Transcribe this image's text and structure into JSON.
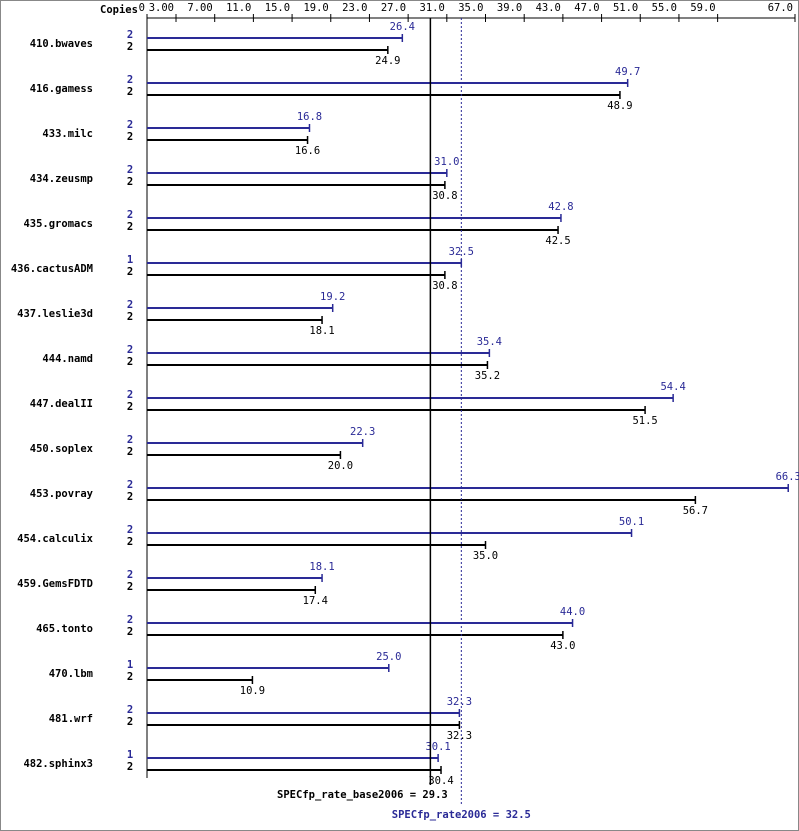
{
  "chart_data": {
    "type": "bar",
    "orientation": "horizontal",
    "axis_title": "Copies",
    "categories": [
      "410.bwaves",
      "416.gamess",
      "433.milc",
      "434.zeusmp",
      "435.gromacs",
      "436.cactusADM",
      "437.leslie3d",
      "444.namd",
      "447.dealII",
      "450.soplex",
      "453.povray",
      "454.calculix",
      "459.GemsFDTD",
      "465.tonto",
      "470.lbm",
      "481.wrf",
      "482.sphinx3"
    ],
    "series": [
      {
        "color": "#2a2a96",
        "copies": [
          2,
          2,
          2,
          2,
          2,
          1,
          2,
          2,
          2,
          2,
          2,
          2,
          2,
          2,
          1,
          2,
          1
        ],
        "values": [
          26.4,
          49.7,
          16.8,
          31.0,
          42.8,
          32.5,
          19.2,
          35.4,
          54.4,
          22.3,
          66.3,
          50.1,
          18.1,
          44.0,
          25.0,
          32.3,
          30.1
        ],
        "value_labels": [
          "26.4",
          "49.7",
          "16.8",
          "31.0",
          "42.8",
          "32.5",
          "19.2",
          "35.4",
          "54.4",
          "22.3",
          "66.3",
          "50.1",
          "18.1",
          "44.0",
          "25.0",
          "32.3",
          "30.1"
        ]
      },
      {
        "color": "#000000",
        "copies": [
          2,
          2,
          2,
          2,
          2,
          2,
          2,
          2,
          2,
          2,
          2,
          2,
          2,
          2,
          2,
          2,
          2
        ],
        "values": [
          24.9,
          48.9,
          16.6,
          30.8,
          42.5,
          30.8,
          18.1,
          35.2,
          51.5,
          20.0,
          56.7,
          35.0,
          17.4,
          43.0,
          10.9,
          32.3,
          30.4
        ],
        "value_labels": [
          "24.9",
          "48.9",
          "16.6",
          "30.8",
          "42.5",
          "30.8",
          "18.1",
          "35.2",
          "51.5",
          "20.0",
          "56.7",
          "35.0",
          "17.4",
          "43.0",
          "10.9",
          "32.3",
          "30.4"
        ]
      }
    ],
    "xlim": [
      0,
      67
    ],
    "xticks": [
      0,
      {
        "value": 3,
        "label": "3.00"
      },
      {
        "value": 7,
        "label": "7.00"
      },
      {
        "value": 11,
        "label": "11.0"
      },
      {
        "value": 15,
        "label": "15.0"
      },
      {
        "value": 19,
        "label": "19.0"
      },
      {
        "value": 23,
        "label": "23.0"
      },
      {
        "value": 27,
        "label": "27.0"
      },
      {
        "value": 31,
        "label": "31.0"
      },
      {
        "value": 35,
        "label": "35.0"
      },
      {
        "value": 39,
        "label": "39.0"
      },
      {
        "value": 43,
        "label": "43.0"
      },
      {
        "value": 47,
        "label": "47.0"
      },
      {
        "value": 51,
        "label": "51.0"
      },
      {
        "value": 55,
        "label": "55.0"
      },
      {
        "value": 59,
        "label": "59.0"
      },
      {
        "value": 67,
        "label": "67.0"
      }
    ],
    "reference_lines": [
      {
        "label": "SPECfp_rate_base2006 = 29.3",
        "value": 29.3,
        "color": "#000000",
        "dashed": false
      },
      {
        "label": "SPECfp_rate2006 = 32.5",
        "value": 32.5,
        "color": "#2a2a96",
        "dashed": true
      }
    ]
  }
}
